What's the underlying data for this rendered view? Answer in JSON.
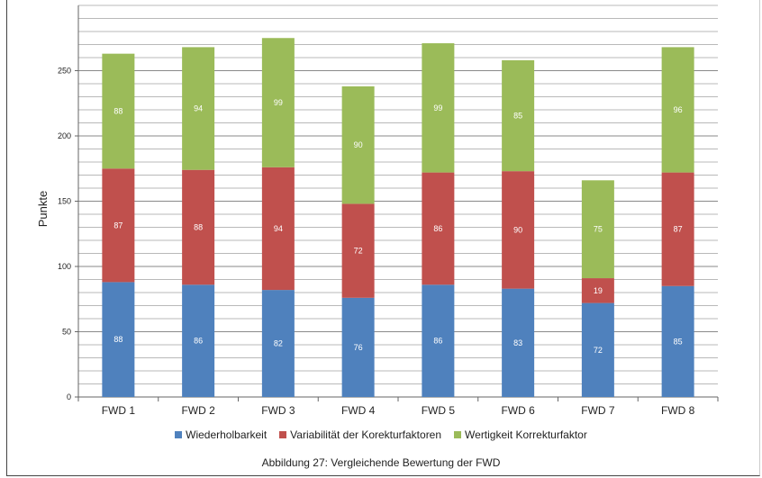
{
  "chart_data": {
    "type": "bar",
    "stacked": true,
    "categories": [
      "FWD 1",
      "FWD 2",
      "FWD 3",
      "FWD 4",
      "FWD 5",
      "FWD 6",
      "FWD 7",
      "FWD 8"
    ],
    "series": [
      {
        "name": "Wiederholbarkeit",
        "color": "#4f81bd",
        "values": [
          88,
          86,
          82,
          76,
          86,
          83,
          72,
          85
        ]
      },
      {
        "name": "Variabilität der Korekturfaktoren",
        "color": "#c0504d",
        "values": [
          87,
          88,
          94,
          72,
          86,
          90,
          19,
          87
        ]
      },
      {
        "name": "Wertigkeit Korrekturfaktor",
        "color": "#9bbb59",
        "values": [
          88,
          94,
          99,
          90,
          99,
          85,
          75,
          96
        ]
      }
    ],
    "ylabel": "Punkte",
    "xlabel": "",
    "ylim": [
      0,
      300
    ],
    "yticks": [
      0,
      50,
      100,
      150,
      200,
      250
    ],
    "grid": true,
    "legend": "bottom",
    "caption": "Abbildung 27: Vergleichende Bewertung der FWD"
  }
}
